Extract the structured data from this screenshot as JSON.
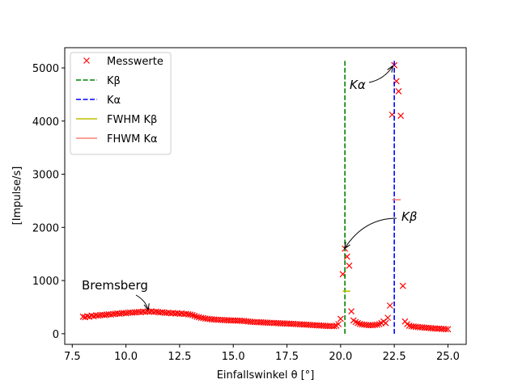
{
  "chart_data": {
    "type": "scatter",
    "xlabel": "Einfallswinkel θ [°]",
    "ylabel": "[Impulse/s]",
    "xlim": [
      7.15,
      25.85
    ],
    "ylim": [
      -200,
      5380
    ],
    "xticks": [
      7.5,
      {
        "value": 10,
        "label": "10.0"
      },
      12.5,
      {
        "value": 15,
        "label": "15.0"
      },
      17.5,
      {
        "value": 20,
        "label": "20.0"
      },
      22.5,
      {
        "value": 25,
        "label": "25.0"
      }
    ],
    "yticks": [
      0,
      1000,
      2000,
      3000,
      4000,
      5000
    ],
    "legend": "upper left",
    "annotations": [
      "Bremsberg",
      "Kα",
      "Kβ"
    ],
    "series": [
      {
        "name": "Messwerte",
        "color": "#ff0000",
        "style": "x",
        "x": [
          8.0,
          8.1,
          8.2,
          8.3,
          8.4,
          8.5,
          8.6,
          8.7,
          8.8,
          8.9,
          9.0,
          9.1,
          9.2,
          9.3,
          9.4,
          9.5,
          9.6,
          9.7,
          9.8,
          9.9,
          10.0,
          10.1,
          10.2,
          10.3,
          10.4,
          10.5,
          10.6,
          10.7,
          10.8,
          10.9,
          11.0,
          11.1,
          11.2,
          11.3,
          11.4,
          11.5,
          11.6,
          11.7,
          11.8,
          11.9,
          12.0,
          12.1,
          12.2,
          12.3,
          12.4,
          12.5,
          12.6,
          12.7,
          12.8,
          12.9,
          13.0,
          13.1,
          13.2,
          13.3,
          13.4,
          13.5,
          13.6,
          13.7,
          13.8,
          13.9,
          14.0,
          14.1,
          14.2,
          14.3,
          14.4,
          14.5,
          14.6,
          14.7,
          14.8,
          14.9,
          15.0,
          15.1,
          15.2,
          15.3,
          15.4,
          15.5,
          15.6,
          15.7,
          15.8,
          15.9,
          16.0,
          16.1,
          16.2,
          16.3,
          16.4,
          16.5,
          16.6,
          16.7,
          16.8,
          16.9,
          17.0,
          17.1,
          17.2,
          17.3,
          17.4,
          17.5,
          17.6,
          17.7,
          17.8,
          17.9,
          18.0,
          18.1,
          18.2,
          18.3,
          18.4,
          18.5,
          18.6,
          18.7,
          18.8,
          18.9,
          19.0,
          19.1,
          19.2,
          19.3,
          19.4,
          19.5,
          19.6,
          19.7,
          19.8,
          19.9,
          20.0,
          20.1,
          20.2,
          20.3,
          20.4,
          20.5,
          20.6,
          20.7,
          20.8,
          20.9,
          21.0,
          21.1,
          21.2,
          21.3,
          21.4,
          21.5,
          21.6,
          21.7,
          21.8,
          21.9,
          22.0,
          22.1,
          22.2,
          22.3,
          22.4,
          22.5,
          22.6,
          22.7,
          22.8,
          22.9,
          23.0,
          23.1,
          23.2,
          23.3,
          23.4,
          23.5,
          23.6,
          23.7,
          23.8,
          23.9,
          24.0,
          24.1,
          24.2,
          24.3,
          24.4,
          24.5,
          24.6,
          24.7,
          24.8,
          24.9,
          25.0
        ],
        "values": [
          320,
          310,
          330,
          320,
          340,
          330,
          345,
          340,
          350,
          355,
          350,
          360,
          365,
          360,
          370,
          375,
          380,
          375,
          385,
          390,
          385,
          395,
          400,
          395,
          400,
          405,
          410,
          405,
          415,
          410,
          420,
          415,
          420,
          410,
          415,
          405,
          400,
          405,
          395,
          390,
          395,
          385,
          390,
          380,
          385,
          375,
          380,
          370,
          375,
          365,
          360,
          350,
          335,
          320,
          310,
          300,
          295,
          285,
          280,
          275,
          270,
          268,
          265,
          262,
          260,
          258,
          255,
          255,
          252,
          250,
          250,
          248,
          245,
          245,
          242,
          240,
          235,
          230,
          225,
          222,
          220,
          218,
          215,
          215,
          212,
          210,
          208,
          205,
          205,
          202,
          200,
          198,
          195,
          195,
          192,
          190,
          188,
          185,
          185,
          182,
          180,
          178,
          175,
          172,
          170,
          168,
          165,
          162,
          160,
          158,
          155,
          152,
          150,
          148,
          145,
          145,
          142,
          140,
          150,
          180,
          280,
          1120,
          1600,
          1450,
          1280,
          420,
          250,
          220,
          200,
          185,
          175,
          170,
          165,
          160,
          160,
          160,
          165,
          170,
          180,
          200,
          230,
          200,
          300,
          530,
          4120,
          5050,
          4750,
          4560,
          4100,
          900,
          230,
          180,
          150,
          140,
          135,
          130,
          125,
          120,
          120,
          115,
          110,
          110,
          105,
          100,
          100,
          95,
          95,
          90,
          90,
          85,
          85
        ]
      },
      {
        "name": "Kβ",
        "color": "#008000",
        "style": "dashed",
        "x": [
          20.2,
          20.2
        ],
        "values": [
          0,
          5160
        ]
      },
      {
        "name": "Kα",
        "color": "#0000ff",
        "style": "dashed",
        "x": [
          22.5,
          22.5
        ],
        "values": [
          0,
          5160
        ]
      },
      {
        "name": "FWHM Kβ",
        "color": "#bfbf00",
        "style": "solid",
        "x": [
          20.1,
          20.45
        ],
        "values": [
          800,
          800
        ]
      },
      {
        "name": "FHWM Kα",
        "color": "#fa8072",
        "style": "solid",
        "x": [
          22.4,
          22.8
        ],
        "values": [
          2520,
          2520
        ]
      }
    ]
  }
}
